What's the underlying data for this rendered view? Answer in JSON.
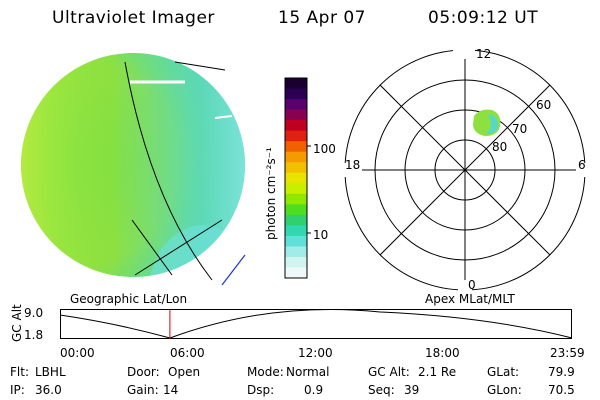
{
  "header": {
    "instrument": "Ultraviolet Imager",
    "date": "15 Apr 07",
    "time": "05:09:12 UT"
  },
  "colorbar": {
    "label": "photon cm⁻²s⁻¹",
    "ticks": [
      "100",
      "10"
    ],
    "colors": [
      "#1a0030",
      "#2a0055",
      "#5a006e",
      "#8a0050",
      "#c00020",
      "#e02010",
      "#f06000",
      "#f59a00",
      "#f2c000",
      "#e8e400",
      "#c8ef00",
      "#90e800",
      "#50dc20",
      "#30d070",
      "#30d8b0",
      "#60e0d8",
      "#a0ece8",
      "#d0f4f0",
      "#eef8f8"
    ]
  },
  "polar_plot": {
    "mlt_labels": {
      "top": "12",
      "left": "18",
      "right": "6",
      "bottom": "0"
    },
    "mlat_labels": [
      "60",
      "70",
      "80"
    ]
  },
  "geo_image": {
    "colors": {
      "dominant": "#8ee040",
      "edge": "#5ad8c0",
      "limb": "#c8ee40"
    }
  },
  "panel_labels": {
    "left": "Geographic Lat/Lon",
    "right": "Apex MLat/MLT"
  },
  "altitude_plot": {
    "axis_label": "GC Alt",
    "y_ticks": [
      "9.0",
      "1.8"
    ],
    "x_ticks": [
      "00:00",
      "06:00",
      "12:00",
      "18:00",
      "23:59"
    ],
    "current_time_fraction": 0.2147
  },
  "status": {
    "row1": [
      {
        "key": "Flt:",
        "value": "LBHL"
      },
      {
        "key": "Door:",
        "value": "Open"
      },
      {
        "key": "Mode:",
        "value": "Normal"
      },
      {
        "key": "GC Alt:",
        "value": "2.1 Re"
      },
      {
        "key": "GLat:",
        "value": "79.9"
      }
    ],
    "row2": [
      {
        "key": "IP:",
        "value": "36.0"
      },
      {
        "key": "Gain:",
        "value": "14"
      },
      {
        "key": "Dsp:",
        "value": "0.9"
      },
      {
        "key": "Seq:",
        "value": "39"
      },
      {
        "key": "GLon:",
        "value": "70.5"
      }
    ]
  }
}
